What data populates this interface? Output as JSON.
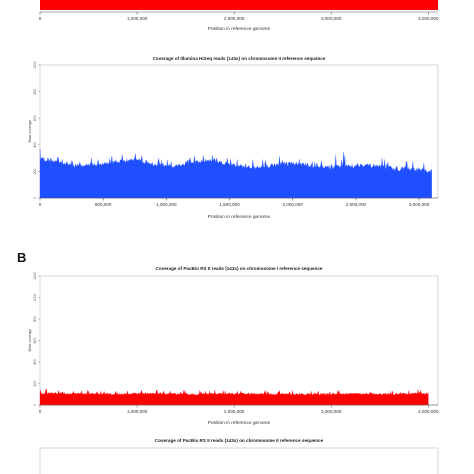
{
  "panel_labels": {
    "b": "B"
  },
  "chart_data": [
    {
      "type": "area",
      "title": "",
      "xlabel": "Position in reference genome",
      "ylabel": "",
      "x_ticks": [
        0,
        1000000,
        2000000,
        3000000,
        4000000
      ],
      "x_tick_labels": [
        "0",
        "1,000,000",
        "2,000,000",
        "3,000,000",
        "4,000,000"
      ],
      "xlim": [
        0,
        4100000
      ],
      "color": "#ff0000",
      "series": [
        {
          "values": []
        }
      ],
      "note_visible": "only the lower part of this panel is visible"
    },
    {
      "type": "area",
      "title": "Coverage of Illumina HiSeq reads (143x) on chromosome II reference sequence",
      "xlabel": "Position in reference genome",
      "ylabel": "Base coverage",
      "x_ticks": [
        0,
        500000,
        1000000,
        1500000,
        2000000,
        2500000,
        3000000
      ],
      "x_tick_labels": [
        "0",
        "500,000",
        "1,000,000",
        "1,500,000",
        "2,000,000",
        "2,500,000",
        "3,000,000"
      ],
      "y_ticks": [
        0,
        200,
        400,
        600,
        800,
        1000
      ],
      "y_tick_labels": [
        "0",
        "200",
        "400",
        "600",
        "800",
        "1000"
      ],
      "xlim": [
        0,
        3150000
      ],
      "ylim": [
        0,
        1000
      ],
      "color": "#1f4fff",
      "series": [
        {
          "x": [
            0,
            150000,
            300000,
            450000,
            600000,
            750000,
            900000,
            1050000,
            1200000,
            1350000,
            1500000,
            1650000,
            1800000,
            1950000,
            2100000,
            2250000,
            2400000,
            2550000,
            2700000,
            2850000,
            3000000,
            3100000
          ],
          "values": [
            300,
            270,
            240,
            250,
            270,
            290,
            250,
            240,
            260,
            280,
            250,
            230,
            240,
            260,
            250,
            230,
            240,
            250,
            230,
            220,
            210,
            200
          ],
          "peaks": [
            380,
            330,
            310,
            300,
            320,
            350,
            310,
            300,
            320,
            340,
            310,
            290,
            300,
            330,
            320,
            290,
            350,
            310,
            300,
            290,
            280,
            260
          ]
        }
      ]
    },
    {
      "type": "area",
      "title": "Coverage of PacBio RS II reads (143x) on chromosome I reference sequence",
      "xlabel": "Position in reference genome",
      "ylabel": "Base coverage",
      "x_ticks": [
        0,
        1000000,
        2000000,
        3000000,
        4000000
      ],
      "x_tick_labels": [
        "0",
        "1,000,000",
        "2,000,000",
        "3,000,000",
        "4,000,000"
      ],
      "y_ticks": [
        0,
        200,
        400,
        600,
        800,
        1000,
        1200
      ],
      "y_tick_labels": [
        "0",
        "200",
        "400",
        "600",
        "800",
        "1000",
        "1200"
      ],
      "xlim": [
        0,
        4100000
      ],
      "ylim": [
        0,
        1200
      ],
      "color": "#ff0000",
      "series": [
        {
          "x": [
            0,
            400000,
            800000,
            1200000,
            1600000,
            2000000,
            2400000,
            2800000,
            3200000,
            3600000,
            4000000
          ],
          "values": [
            110,
            105,
            100,
            105,
            100,
            105,
            100,
            100,
            105,
            100,
            110
          ],
          "peaks": [
            150,
            140,
            135,
            140,
            135,
            140,
            135,
            140,
            140,
            135,
            150
          ]
        }
      ]
    },
    {
      "type": "area",
      "title": "Coverage of PacBio RS II reads (143x) on chromosome II reference sequence",
      "xlabel": "",
      "ylabel": "",
      "note_visible": "only the title and top of this panel are visible"
    }
  ]
}
